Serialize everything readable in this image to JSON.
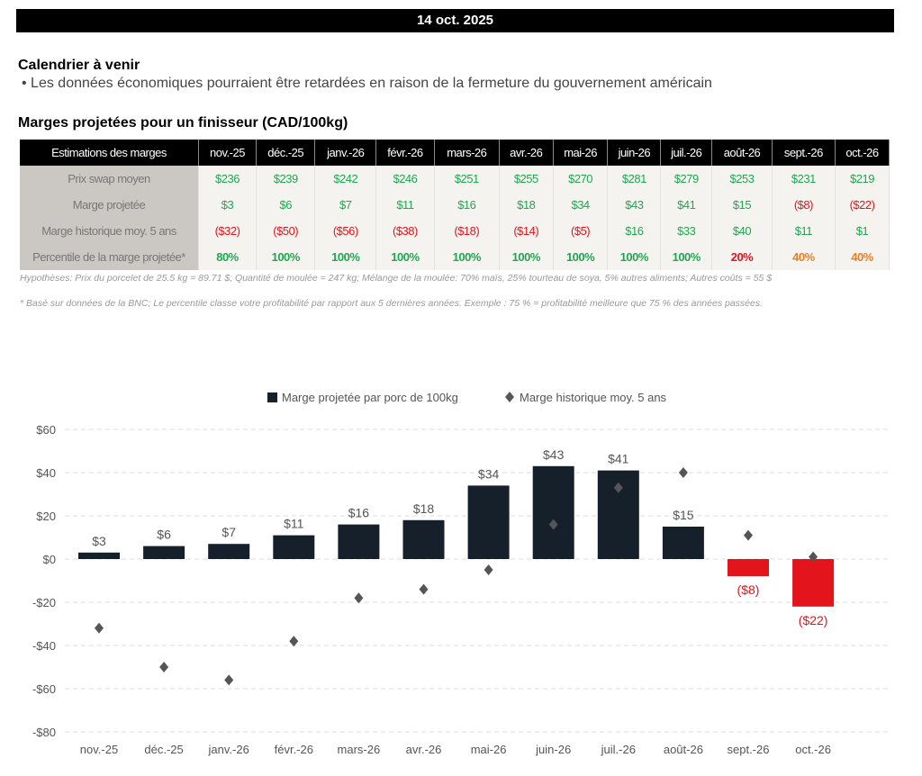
{
  "banner": {
    "date": "14 oct. 2025"
  },
  "calendar": {
    "title": "Calendrier à venir",
    "bullet": "• Les données économiques pourraient être retardées en raison de la fermeture du gouvernement américain"
  },
  "table": {
    "title": "Marges projetées pour un finisseur (CAD/100kg)",
    "header": "Estimations des marges",
    "months": [
      "nov.-25",
      "déc.-25",
      "janv.-26",
      "févr.-26",
      "mars-26",
      "avr.-26",
      "mai-26",
      "juin-26",
      "juil.-26",
      "août-26",
      "sept.-26",
      "oct.-26"
    ],
    "rows": [
      {
        "label": "Prix swap moyen",
        "values": [
          "$236",
          "$239",
          "$242",
          "$246",
          "$251",
          "$255",
          "$270",
          "$281",
          "$279",
          "$253",
          "$231",
          "$219"
        ]
      },
      {
        "label": "Marge projetée",
        "values": [
          "$3",
          "$6",
          "$7",
          "$11",
          "$16",
          "$18",
          "$34",
          "$43",
          "$41",
          "$15",
          "($8)",
          "($22)"
        ]
      },
      {
        "label": "Marge historique moy. 5 ans",
        "values": [
          "($32)",
          "($50)",
          "($56)",
          "($38)",
          "($18)",
          "($14)",
          "($5)",
          "$16",
          "$33",
          "$40",
          "$11",
          "$1"
        ]
      },
      {
        "label": "Percentile de la marge projetée*",
        "values": [
          "80%",
          "100%",
          "100%",
          "100%",
          "100%",
          "100%",
          "100%",
          "100%",
          "100%",
          "20%",
          "40%",
          "40%"
        ]
      }
    ]
  },
  "notes": {
    "hypotheses": "Hypothèses: Prix du porcelet de 25.5 kg = 89.71 $; Quantité de moulée = 247 kg; Mélange de la moulée: 70% maïs, 25% tourteau de soya, 5% autres aliments; Autres coûts = 55 $",
    "footnote": "* Basé sur données de la BNC; Le percentile classe votre profitabilité par rapport aux 5 dernières années. Exemple : 75 % = profitabilité meilleure que 75 % des années passées."
  },
  "colors": {
    "positive": "#1fa84f",
    "negative": "#e3141b",
    "mid": "#f07d1a",
    "bar": "#15202b",
    "bar_negative": "#e3141b"
  },
  "chart_data": {
    "type": "bar",
    "categories": [
      "nov.-25",
      "déc.-25",
      "janv.-26",
      "févr.-26",
      "mars-26",
      "avr.-26",
      "mai-26",
      "juin-26",
      "juil.-26",
      "août-26",
      "sept.-26",
      "oct.-26"
    ],
    "series": [
      {
        "name": "Marge projetée par porc de 100kg",
        "type": "bar",
        "values": [
          3,
          6,
          7,
          11,
          16,
          18,
          34,
          43,
          41,
          15,
          -8,
          -22
        ],
        "labels": [
          "$3",
          "$6",
          "$7",
          "$11",
          "$16",
          "$18",
          "$34",
          "$43",
          "$41",
          "$15",
          "($8)",
          "($22)"
        ]
      },
      {
        "name": "Marge historique moy. 5 ans",
        "type": "scatter",
        "marker": "diamond",
        "values": [
          -32,
          -50,
          -56,
          -38,
          -18,
          -14,
          -5,
          16,
          33,
          40,
          11,
          1
        ]
      }
    ],
    "ylim": [
      -80,
      60
    ],
    "yticks": [
      60,
      40,
      20,
      0,
      -20,
      -40,
      -60,
      -80
    ],
    "ytick_labels": [
      "$60",
      "$40",
      "$20",
      "$0",
      "-$20",
      "-$40",
      "-$60",
      "-$80"
    ],
    "grid": true,
    "legend": "top"
  }
}
